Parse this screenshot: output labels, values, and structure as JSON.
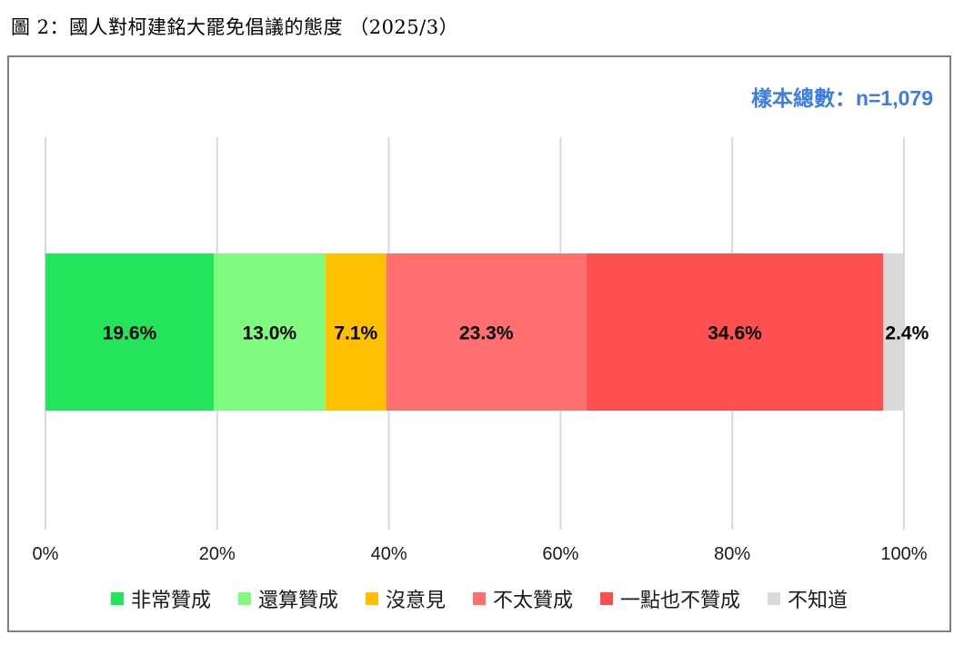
{
  "title": "圖 2：國人對柯建銘大罷免倡議的態度 （2025/3）",
  "sample_note": "樣本總數：n=1,079",
  "chart_data": {
    "type": "bar",
    "orientation": "horizontal",
    "stacked": true,
    "xlim": [
      0,
      100
    ],
    "x_ticks": [
      "0%",
      "20%",
      "40%",
      "60%",
      "80%",
      "100%"
    ],
    "grid": "vertical",
    "legend_position": "bottom",
    "series": [
      {
        "name": "非常贊成",
        "value": 19.6,
        "label": "19.6%",
        "color": "#22e55b"
      },
      {
        "name": "還算贊成",
        "value": 13.0,
        "label": "13.0%",
        "color": "#7ffb7f"
      },
      {
        "name": "沒意見",
        "value": 7.1,
        "label": "7.1%",
        "color": "#ffc000"
      },
      {
        "name": "不太贊成",
        "value": 23.3,
        "label": "23.3%",
        "color": "#ff6f6f"
      },
      {
        "name": "一點也不贊成",
        "value": 34.6,
        "label": "34.6%",
        "color": "#ff5050"
      },
      {
        "name": "不知道",
        "value": 2.4,
        "label": "2.4%",
        "color": "#d9d9d9"
      }
    ]
  }
}
